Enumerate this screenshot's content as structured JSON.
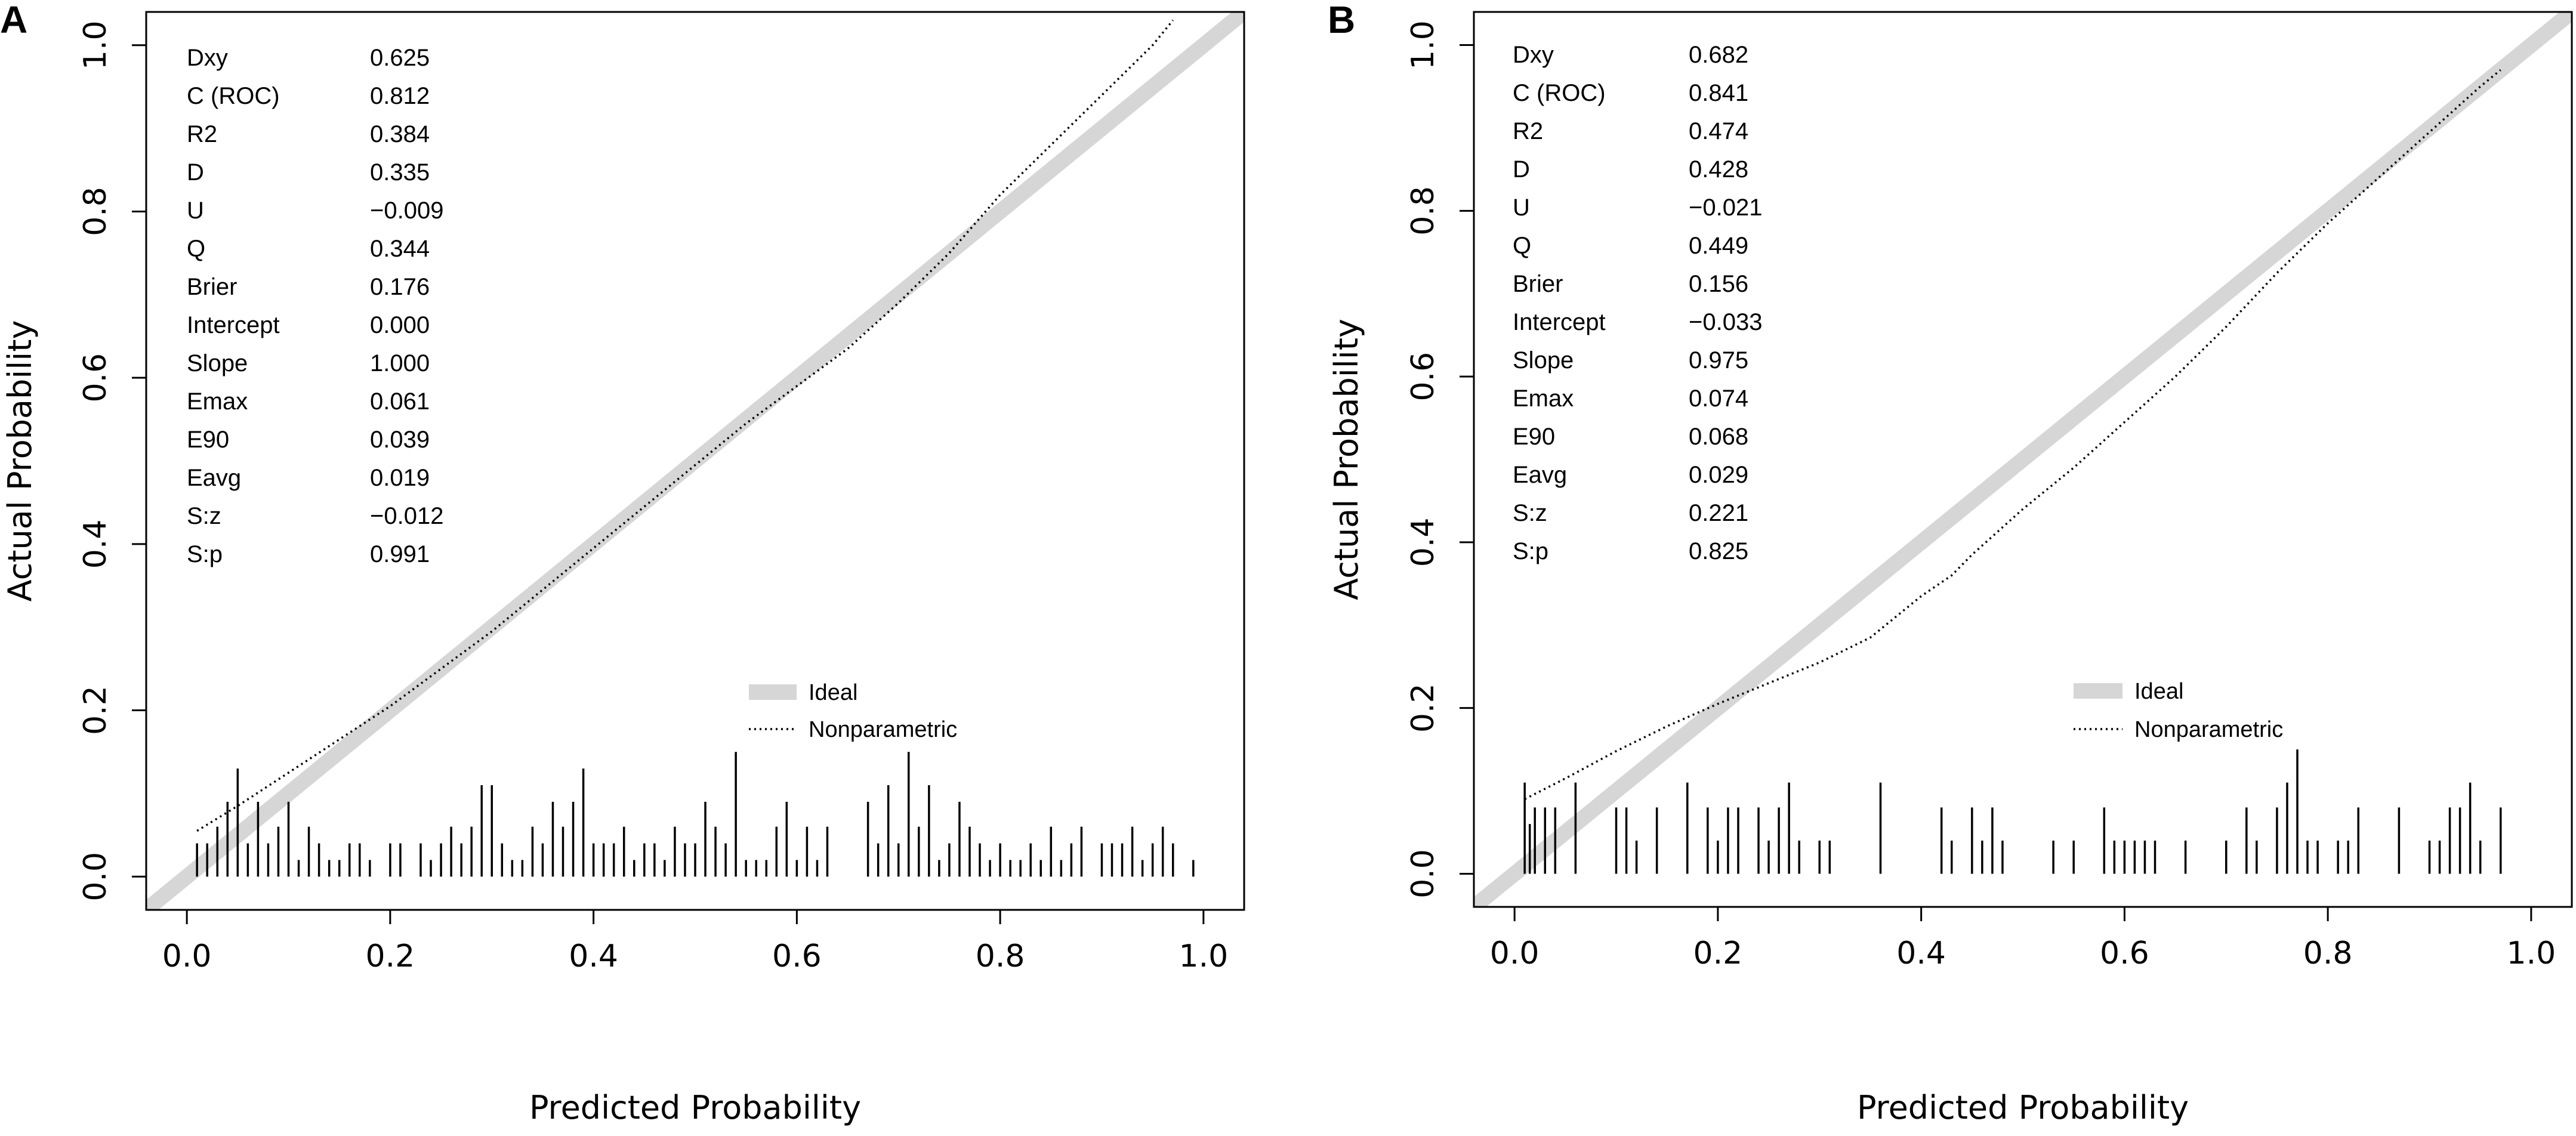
{
  "chart_data": [
    {
      "panel": "A",
      "type": "line",
      "xlabel": "Predicted Probability",
      "ylabel": "Actual Probability",
      "xlim": [
        0,
        1
      ],
      "ylim": [
        0,
        1
      ],
      "xticks": [
        "0.0",
        "0.2",
        "0.4",
        "0.6",
        "0.8",
        "1.0"
      ],
      "yticks": [
        "0.0",
        "0.2",
        "0.4",
        "0.6",
        "0.8",
        "1.0"
      ],
      "stats": [
        {
          "label": "Dxy",
          "value": "0.625"
        },
        {
          "label": "C (ROC)",
          "value": "0.812"
        },
        {
          "label": "R2",
          "value": "0.384"
        },
        {
          "label": "D",
          "value": "0.335"
        },
        {
          "label": "U",
          "value": "−0.009"
        },
        {
          "label": "Q",
          "value": "0.344"
        },
        {
          "label": "Brier",
          "value": "0.176"
        },
        {
          "label": "Intercept",
          "value": "0.000"
        },
        {
          "label": "Slope",
          "value": "1.000"
        },
        {
          "label": "Emax",
          "value": "0.061"
        },
        {
          "label": "E90",
          "value": "0.039"
        },
        {
          "label": "Eavg",
          "value": "0.019"
        },
        {
          "label": "S:z",
          "value": "−0.012"
        },
        {
          "label": "S:p",
          "value": "0.991"
        }
      ],
      "legend": [
        "Ideal",
        "Nonparametric"
      ],
      "series": [
        {
          "name": "Ideal",
          "x": [
            -0.05,
            1.05
          ],
          "y": [
            -0.05,
            1.05
          ]
        },
        {
          "name": "Nonparametric",
          "x": [
            0.01,
            0.05,
            0.1,
            0.15,
            0.2,
            0.25,
            0.3,
            0.35,
            0.4,
            0.45,
            0.5,
            0.55,
            0.6,
            0.65,
            0.7,
            0.75,
            0.8,
            0.85,
            0.9,
            0.95,
            0.97
          ],
          "y": [
            0.055,
            0.085,
            0.125,
            0.165,
            0.205,
            0.25,
            0.295,
            0.345,
            0.395,
            0.445,
            0.495,
            0.545,
            0.59,
            0.635,
            0.69,
            0.75,
            0.82,
            0.88,
            0.94,
            1.0,
            1.03
          ]
        }
      ],
      "rug": {
        "x": [
          0.01,
          0.02,
          0.03,
          0.04,
          0.05,
          0.06,
          0.07,
          0.08,
          0.09,
          0.1,
          0.11,
          0.12,
          0.13,
          0.14,
          0.15,
          0.16,
          0.17,
          0.18,
          0.2,
          0.21,
          0.23,
          0.24,
          0.25,
          0.26,
          0.27,
          0.28,
          0.29,
          0.3,
          0.31,
          0.32,
          0.33,
          0.34,
          0.35,
          0.36,
          0.37,
          0.38,
          0.39,
          0.4,
          0.41,
          0.42,
          0.43,
          0.44,
          0.45,
          0.46,
          0.47,
          0.48,
          0.49,
          0.5,
          0.51,
          0.52,
          0.53,
          0.54,
          0.55,
          0.56,
          0.57,
          0.58,
          0.59,
          0.6,
          0.61,
          0.62,
          0.63,
          0.67,
          0.68,
          0.69,
          0.7,
          0.71,
          0.72,
          0.73,
          0.74,
          0.75,
          0.76,
          0.77,
          0.78,
          0.79,
          0.8,
          0.81,
          0.82,
          0.83,
          0.84,
          0.85,
          0.86,
          0.87,
          0.88,
          0.9,
          0.91,
          0.92,
          0.93,
          0.94,
          0.95,
          0.96,
          0.97,
          0.99
        ],
        "h": [
          0.04,
          0.04,
          0.06,
          0.09,
          0.13,
          0.04,
          0.09,
          0.04,
          0.06,
          0.09,
          0.02,
          0.06,
          0.04,
          0.02,
          0.02,
          0.04,
          0.04,
          0.02,
          0.04,
          0.04,
          0.04,
          0.02,
          0.04,
          0.06,
          0.04,
          0.06,
          0.11,
          0.11,
          0.04,
          0.02,
          0.02,
          0.06,
          0.04,
          0.09,
          0.06,
          0.09,
          0.13,
          0.04,
          0.04,
          0.04,
          0.06,
          0.02,
          0.04,
          0.04,
          0.02,
          0.06,
          0.04,
          0.04,
          0.09,
          0.06,
          0.04,
          0.15,
          0.02,
          0.02,
          0.02,
          0.06,
          0.09,
          0.02,
          0.06,
          0.02,
          0.06,
          0.09,
          0.04,
          0.11,
          0.04,
          0.15,
          0.06,
          0.11,
          0.02,
          0.04,
          0.09,
          0.06,
          0.04,
          0.02,
          0.04,
          0.02,
          0.02,
          0.04,
          0.02,
          0.06,
          0.02,
          0.04,
          0.06,
          0.04,
          0.04,
          0.04,
          0.06,
          0.02,
          0.04,
          0.06,
          0.04,
          0.02
        ]
      }
    },
    {
      "panel": "B",
      "type": "line",
      "xlabel": "Predicted Probability",
      "ylabel": "Actual Probability",
      "xlim": [
        0,
        1
      ],
      "ylim": [
        0,
        1
      ],
      "xticks": [
        "0.0",
        "0.2",
        "0.4",
        "0.6",
        "0.8",
        "1.0"
      ],
      "yticks": [
        "0.0",
        "0.2",
        "0.4",
        "0.6",
        "0.8",
        "1.0"
      ],
      "stats": [
        {
          "label": "Dxy",
          "value": "0.682"
        },
        {
          "label": "C (ROC)",
          "value": "0.841"
        },
        {
          "label": "R2",
          "value": "0.474"
        },
        {
          "label": "D",
          "value": "0.428"
        },
        {
          "label": "U",
          "value": "−0.021"
        },
        {
          "label": "Q",
          "value": "0.449"
        },
        {
          "label": "Brier",
          "value": "0.156"
        },
        {
          "label": "Intercept",
          "value": "−0.033"
        },
        {
          "label": "Slope",
          "value": "0.975"
        },
        {
          "label": "Emax",
          "value": "0.074"
        },
        {
          "label": "E90",
          "value": "0.068"
        },
        {
          "label": "Eavg",
          "value": "0.029"
        },
        {
          "label": "S:z",
          "value": "0.221"
        },
        {
          "label": "S:p",
          "value": "0.825"
        }
      ],
      "legend": [
        "Ideal",
        "Nonparametric"
      ],
      "series": [
        {
          "name": "Ideal",
          "x": [
            -0.05,
            1.05
          ],
          "y": [
            -0.05,
            1.05
          ]
        },
        {
          "name": "Nonparametric",
          "x": [
            0.01,
            0.05,
            0.1,
            0.15,
            0.2,
            0.25,
            0.3,
            0.35,
            0.4,
            0.43,
            0.45,
            0.5,
            0.55,
            0.6,
            0.65,
            0.7,
            0.75,
            0.8,
            0.85,
            0.9,
            0.95,
            0.97
          ],
          "y": [
            0.09,
            0.115,
            0.148,
            0.178,
            0.205,
            0.23,
            0.255,
            0.285,
            0.335,
            0.36,
            0.385,
            0.44,
            0.49,
            0.545,
            0.6,
            0.66,
            0.725,
            0.785,
            0.84,
            0.895,
            0.95,
            0.97
          ]
        }
      ],
      "rug": {
        "x": [
          0.01,
          0.015,
          0.02,
          0.03,
          0.04,
          0.06,
          0.1,
          0.11,
          0.12,
          0.14,
          0.17,
          0.19,
          0.2,
          0.21,
          0.22,
          0.24,
          0.25,
          0.26,
          0.27,
          0.28,
          0.3,
          0.31,
          0.36,
          0.42,
          0.43,
          0.45,
          0.46,
          0.47,
          0.48,
          0.53,
          0.55,
          0.58,
          0.59,
          0.6,
          0.61,
          0.62,
          0.63,
          0.66,
          0.7,
          0.72,
          0.73,
          0.75,
          0.76,
          0.77,
          0.78,
          0.79,
          0.81,
          0.82,
          0.83,
          0.87,
          0.9,
          0.91,
          0.92,
          0.93,
          0.94,
          0.95,
          0.97
        ],
        "h": [
          0.11,
          0.06,
          0.08,
          0.08,
          0.08,
          0.11,
          0.08,
          0.08,
          0.04,
          0.08,
          0.11,
          0.08,
          0.04,
          0.08,
          0.08,
          0.08,
          0.04,
          0.08,
          0.11,
          0.04,
          0.04,
          0.04,
          0.11,
          0.08,
          0.04,
          0.08,
          0.04,
          0.08,
          0.04,
          0.04,
          0.04,
          0.08,
          0.04,
          0.04,
          0.04,
          0.04,
          0.04,
          0.04,
          0.04,
          0.08,
          0.04,
          0.08,
          0.11,
          0.15,
          0.04,
          0.04,
          0.04,
          0.04,
          0.08,
          0.08,
          0.04,
          0.04,
          0.08,
          0.08,
          0.11,
          0.04,
          0.08
        ]
      }
    }
  ]
}
